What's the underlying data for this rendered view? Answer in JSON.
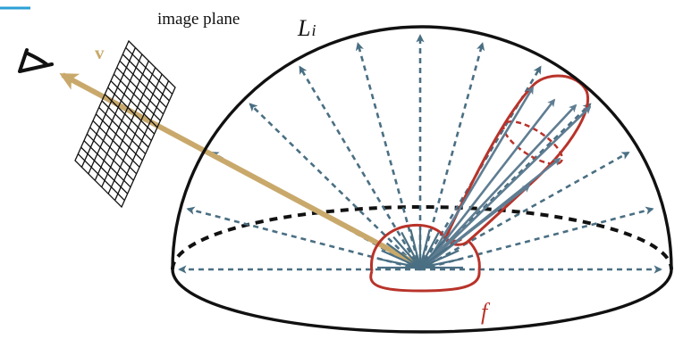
{
  "labels": {
    "image_plane": "image plane",
    "incident_radiance": "L",
    "incident_radiance_sub": "i",
    "view_vector": "v",
    "brdf": "f"
  },
  "colors": {
    "hemisphere": "#111111",
    "incident_arrows": "#4a6f83",
    "view_vector": "#c9a96b",
    "brdf_lobe": "#b8332a",
    "reflected_rays": "#5f7d92",
    "image_plane_grid": "#111111",
    "corner_accent": "#2b9fd6"
  },
  "icons": {
    "eye": "eye-icon"
  }
}
